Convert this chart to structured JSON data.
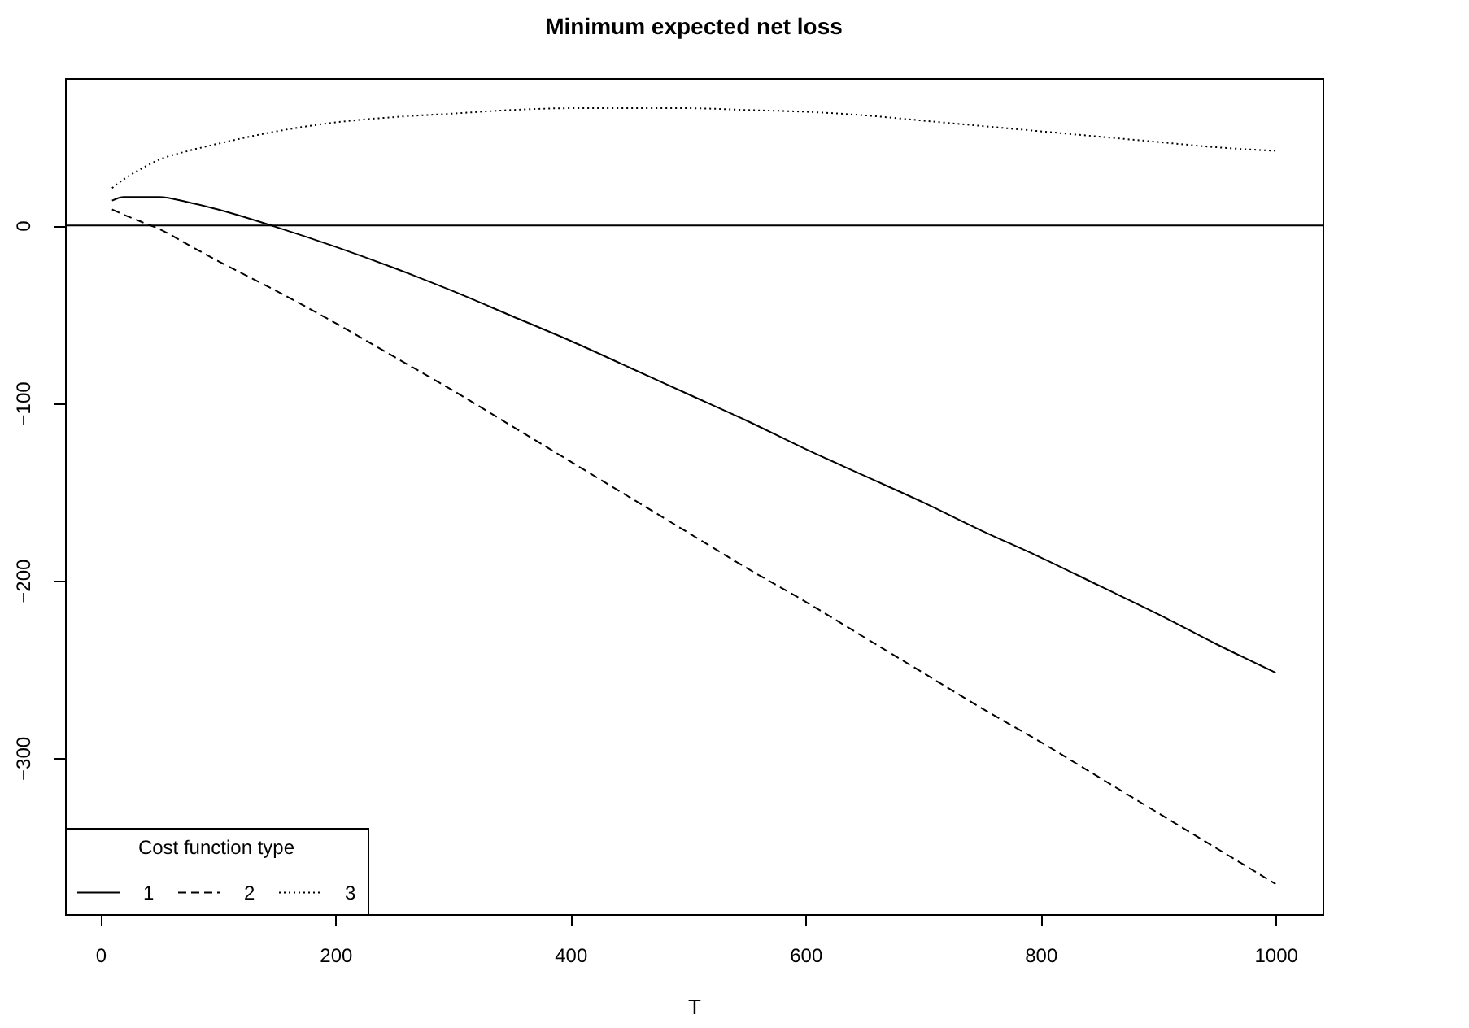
{
  "chart_data": {
    "type": "line",
    "title": "Minimum expected net loss",
    "xlabel": "T",
    "legend_title": "Cost function type",
    "x": [
      10,
      20,
      35,
      50,
      75,
      100,
      150,
      200,
      250,
      300,
      350,
      400,
      450,
      500,
      550,
      600,
      650,
      700,
      750,
      800,
      850,
      900,
      950,
      1000
    ],
    "series": [
      {
        "name": "1",
        "color": "#000000",
        "line_style": "solid",
        "values": [
          14,
          16,
          16,
          16,
          13,
          9,
          -1,
          -12,
          -24,
          -37,
          -51,
          -65,
          -80,
          -95,
          -110,
          -126,
          -141,
          -156,
          -172,
          -187,
          -203,
          -219,
          -236,
          -252
        ]
      },
      {
        "name": "2",
        "color": "#000000",
        "line_style": "dashed",
        "values": [
          9,
          6,
          2,
          -2,
          -11,
          -20,
          -37,
          -55,
          -74,
          -93,
          -113,
          -133,
          -153,
          -173,
          -193,
          -212,
          -232,
          -252,
          -272,
          -291,
          -311,
          -331,
          -351,
          -371
        ]
      },
      {
        "name": "3",
        "color": "#000000",
        "line_style": "dotted",
        "values": [
          21,
          26,
          32,
          37,
          42,
          46,
          53,
          58,
          61,
          63,
          65,
          66,
          66,
          66,
          65,
          64,
          62,
          59,
          56,
          53,
          50,
          47,
          44,
          42
        ]
      }
    ],
    "xlim": [
      -30,
      1040
    ],
    "ylim": [
      -388,
      83
    ],
    "xticks": [
      0,
      200,
      400,
      600,
      800,
      1000
    ],
    "yticks": [
      -300,
      -200,
      -100,
      0
    ],
    "ref_lines": [
      {
        "axis": "y",
        "value": 0,
        "color": "#000000"
      }
    ],
    "grid": false,
    "legend": "bottom left"
  }
}
